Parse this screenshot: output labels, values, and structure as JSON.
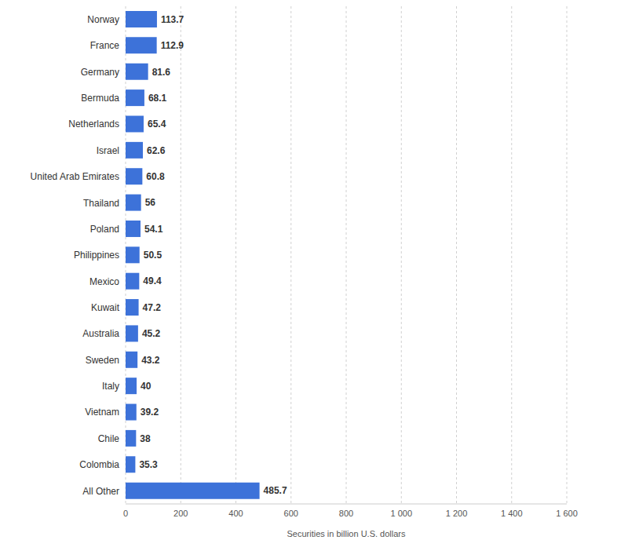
{
  "chart_data": {
    "type": "bar",
    "orientation": "horizontal",
    "x_label": "Securities in billion U.S. dollars",
    "categories": [
      "Norway",
      "France",
      "Germany",
      "Bermuda",
      "Netherlands",
      "Israel",
      "United Arab Emirates",
      "Thailand",
      "Poland",
      "Philippines",
      "Mexico",
      "Kuwait",
      "Australia",
      "Sweden",
      "Italy",
      "Vietnam",
      "Chile",
      "Colombia",
      "All Other"
    ],
    "values": [
      113.7,
      112.9,
      81.6,
      68.1,
      65.4,
      62.6,
      60.8,
      56,
      54.1,
      50.5,
      49.4,
      47.2,
      45.2,
      43.2,
      40,
      39.2,
      38,
      35.3,
      485.7
    ],
    "color": "#3d72d9",
    "xlim": [
      0,
      1600
    ],
    "xticks": [
      0,
      200,
      400,
      600,
      800,
      {
        "value": 1000,
        "label": "1 000"
      },
      {
        "value": 1200,
        "label": "1 200"
      },
      {
        "value": 1400,
        "label": "1 400"
      },
      {
        "value": 1600,
        "label": "1 600"
      }
    ],
    "grid": true,
    "data_labels": true
  }
}
